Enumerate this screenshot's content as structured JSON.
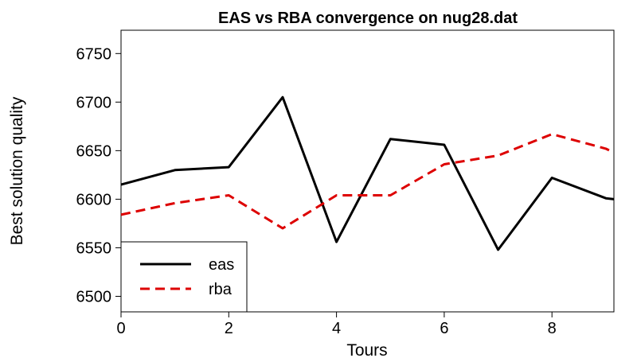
{
  "chart_data": {
    "type": "line",
    "title": "EAS vs RBA convergence on nug28.dat",
    "xlabel": "Tours",
    "ylabel": "Best solution quality",
    "xlim": [
      0,
      9.15
    ],
    "ylim": [
      6484,
      6774
    ],
    "x_ticks": [
      0,
      2,
      4,
      6,
      8
    ],
    "y_ticks": [
      6500,
      6550,
      6600,
      6650,
      6700,
      6750
    ],
    "grid": false,
    "legend_position": "bottom-left",
    "x": [
      0,
      1,
      2,
      3,
      4,
      5,
      6,
      7,
      8,
      9,
      9.15
    ],
    "series": [
      {
        "name": "eas",
        "color": "#000000",
        "dash": "solid",
        "values": [
          6615,
          6630,
          6633,
          6705,
          6556,
          6662,
          6656,
          6548,
          6622,
          6601,
          6600
        ]
      },
      {
        "name": "rba",
        "color": "#dd0000",
        "dash": "dashed",
        "values": [
          6584,
          6596,
          6604,
          6570,
          6604,
          6604,
          6636,
          6645,
          6667,
          6652,
          6648
        ]
      }
    ]
  }
}
